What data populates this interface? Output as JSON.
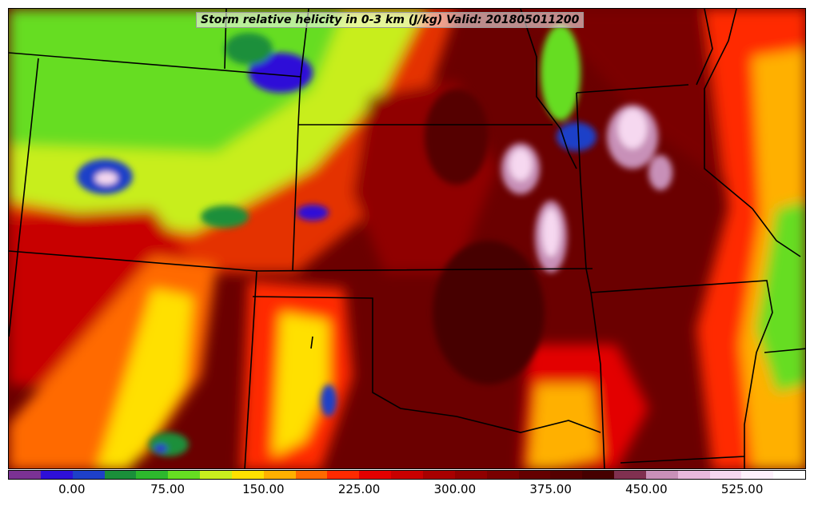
{
  "title": "Storm relative helicity in 0-3 km (J/kg) Valid: 201805011200",
  "colorbar": {
    "colors": [
      "#7b3294",
      "#2e10d8",
      "#1e40c8",
      "#1a8f3a",
      "#2db82d",
      "#66dd22",
      "#c8ee1e",
      "#ffe000",
      "#ffb000",
      "#ff6a00",
      "#ff2a00",
      "#e30000",
      "#c80000",
      "#a80000",
      "#900000",
      "#7a0000",
      "#650000",
      "#550000",
      "#460000",
      "#803050",
      "#c890b8",
      "#e8b8dc",
      "#f6d8f0",
      "#fdf0fb",
      "#ffffff"
    ],
    "ticks": [
      "0.00",
      "75.00",
      "150.00",
      "225.00",
      "300.00",
      "375.00",
      "450.00",
      "525.00"
    ],
    "tick_values": [
      0,
      75,
      150,
      225,
      300,
      375,
      450,
      525
    ],
    "range": [
      -50,
      575
    ]
  },
  "map": {
    "field": "storm relative helicity 0-3 km",
    "units": "J/kg"
  }
}
